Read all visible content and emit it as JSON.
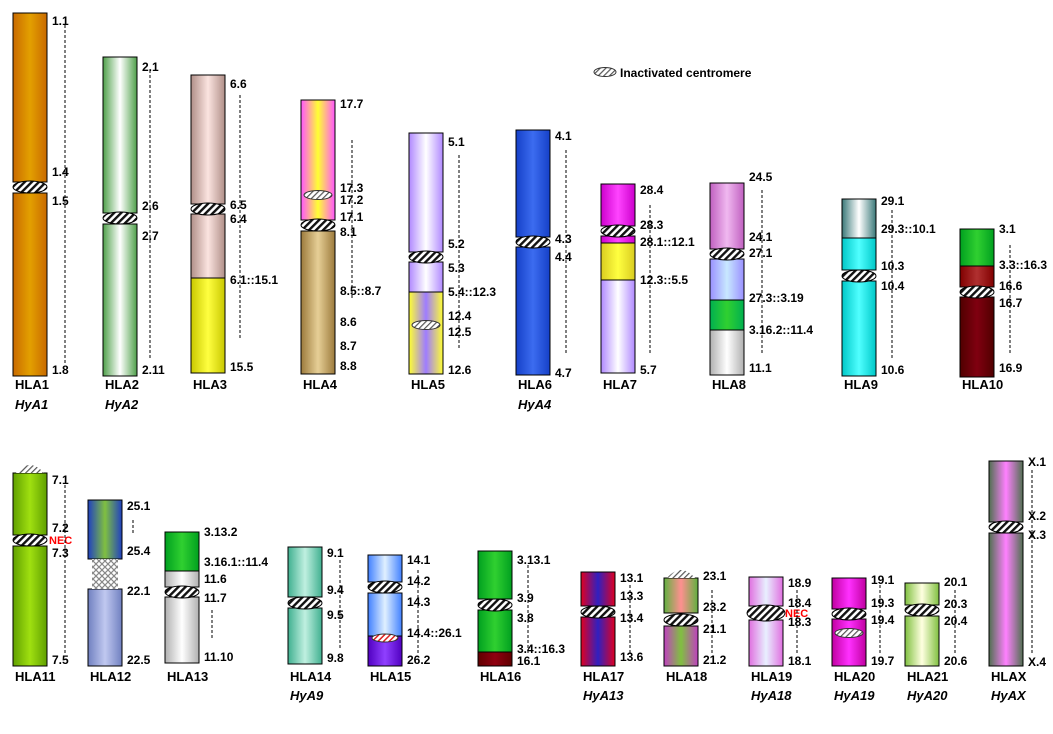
{
  "legend": {
    "label": "Inactivated centromere"
  },
  "nec_label": "NEC",
  "chromosomes": [
    {
      "name": "HLA1",
      "homolog": "HyA1",
      "segments": [
        [
          "#c96a00",
          "#e3a000"
        ],
        [
          "#c96a00",
          "#e3a000"
        ]
      ],
      "bands": [
        "1.1",
        "1.4",
        "1.5",
        "1.8"
      ]
    },
    {
      "name": "HLA2",
      "homolog": "HyA2",
      "segments": [
        [
          "#4fa04a",
          "#ffffff"
        ],
        [
          "#4fa04a",
          "#ffffff"
        ]
      ],
      "bands": [
        "2.1",
        "2.6",
        "2.7",
        "2.11"
      ]
    },
    {
      "name": "HLA3",
      "homolog": "",
      "segments": [
        [
          "#b08f88",
          "#fbe4e0"
        ],
        [
          "#b08f88",
          "#fbe4e0"
        ],
        [
          "#c9c800",
          "#ffff40"
        ]
      ],
      "bands": [
        "6.6",
        "6.5",
        "6.4",
        "6.1::15.1",
        "15.5"
      ]
    },
    {
      "name": "HLA4",
      "homolog": "",
      "segments": [
        [
          "#ff55ff",
          "#ffff33"
        ],
        [
          "#9c7a3c",
          "#e6cf96"
        ]
      ],
      "bands": [
        "17.7",
        "17.3",
        "17.2",
        "17.1",
        "8.1",
        "8.5::8.7",
        "8.6",
        "8.7",
        "8.8"
      ]
    },
    {
      "name": "HLA5",
      "homolog": "",
      "segments": [
        [
          "#b089ff",
          "#ffffff"
        ],
        [
          "#b089ff",
          "#ffffff"
        ],
        [
          "#ffff33",
          "#9e7cff"
        ]
      ],
      "bands": [
        "5.1",
        "5.2",
        "5.3",
        "5.4::12.3",
        "12.4",
        "12.5",
        "12.6"
      ]
    },
    {
      "name": "HLA6",
      "homolog": "HyA4",
      "segments": [
        [
          "#1540c8",
          "#3c6cf0"
        ],
        [
          "#1540c8",
          "#3c6cf0"
        ]
      ],
      "bands": [
        "4.1",
        "4.3",
        "4.4",
        "4.7"
      ]
    },
    {
      "name": "HLA7",
      "homolog": "",
      "segments": [
        [
          "#cc00cc",
          "#ff44ff"
        ],
        [
          "#cc00cc",
          "#ff44ff"
        ],
        [
          "#d9cc20",
          "#ffff40"
        ],
        [
          "#b089ff",
          "#ffffff"
        ]
      ],
      "bands": [
        "28.4",
        "28.3",
        "28.1::12.1",
        "12.3::5.5",
        "5.7"
      ]
    },
    {
      "name": "HLA8",
      "homolog": "",
      "segments": [
        [
          "#c060c0",
          "#f0b8f0"
        ],
        [
          "#9a90ff",
          "#c8e8ff"
        ],
        [
          "#00b050",
          "#30d030"
        ],
        [
          "#b0b0b0",
          "#ffffff"
        ]
      ],
      "bands": [
        "24.5",
        "24.1",
        "27.1",
        "27.3::3.19",
        "3.16.2::11.4",
        "11.1"
      ]
    },
    {
      "name": "HLA9",
      "homolog": "",
      "segments": [
        [
          "#3a7878",
          "#ffffff"
        ],
        [
          "#00c8c8",
          "#50ffff"
        ],
        [
          "#00c8c8",
          "#50ffff"
        ]
      ],
      "bands": [
        "29.1",
        "29.3::10.1",
        "10.3",
        "10.4",
        "10.6"
      ]
    },
    {
      "name": "HLA10",
      "homolog": "",
      "segments": [
        [
          "#00a020",
          "#30d030"
        ],
        [
          "#800000",
          "#b03030"
        ],
        [
          "#500000",
          "#800010"
        ]
      ],
      "bands": [
        "3.1",
        "3.3::16.3",
        "16.6",
        "16.7",
        "16.9"
      ]
    },
    {
      "name": "HLA11",
      "homolog": "",
      "segments": [
        [
          "#60a000",
          "#a0e010"
        ],
        [
          "#60a000",
          "#a0e010"
        ]
      ],
      "bands": [
        "7.1",
        "7.2",
        "7.3",
        "7.5"
      ]
    },
    {
      "name": "HLA12",
      "homolog": "",
      "segments": [
        [
          "#2040c0",
          "#80c040"
        ],
        [
          "#7080c0",
          "#c0c8f0"
        ]
      ],
      "bands": [
        "25.1",
        "25.4",
        "22.1",
        "22.5"
      ]
    },
    {
      "name": "HLA13",
      "homolog": "",
      "segments": [
        [
          "#00a020",
          "#30d030"
        ],
        [
          "#b0b0b0",
          "#ffffff"
        ],
        [
          "#b0b0b0",
          "#ffffff"
        ]
      ],
      "bands": [
        "3.13.2",
        "3.16.1::11.4",
        "11.6",
        "11.7",
        "11.10"
      ]
    },
    {
      "name": "HLA14",
      "homolog": "HyA9",
      "segments": [
        [
          "#40b090",
          "#c0f0e0"
        ],
        [
          "#40b090",
          "#c0f0e0"
        ]
      ],
      "bands": [
        "9.1",
        "9.4",
        "9.5",
        "9.8"
      ]
    },
    {
      "name": "HLA15",
      "homolog": "",
      "segments": [
        [
          "#4080ff",
          "#e0f0ff"
        ],
        [
          "#4080ff",
          "#e0f0ff"
        ],
        [
          "#5000c0",
          "#9040ff"
        ]
      ],
      "bands": [
        "14.1",
        "14.2",
        "14.3",
        "14.4::26.1",
        "26.2"
      ]
    },
    {
      "name": "HLA16",
      "homolog": "",
      "segments": [
        [
          "#00a020",
          "#30d030"
        ],
        [
          "#00a020",
          "#30d030"
        ],
        [
          "#600000",
          "#900010"
        ]
      ],
      "bands": [
        "3.13.1",
        "3.9",
        "3.8",
        "3.4::16.3",
        "16.1"
      ]
    },
    {
      "name": "HLA17",
      "homolog": "HyA13",
      "segments": [
        [
          "#e00020",
          "#3020c0"
        ],
        [
          "#e00020",
          "#3020c0"
        ]
      ],
      "bands": [
        "13.1",
        "13.3",
        "13.4",
        "13.6"
      ]
    },
    {
      "name": "HLA18",
      "homolog": "",
      "segments": [
        [
          "#60b040",
          "#ff9090"
        ],
        [
          "#c040c0",
          "#80c040"
        ]
      ],
      "bands": [
        "23.1",
        "23.2",
        "21.1",
        "21.2"
      ]
    },
    {
      "name": "HLA19",
      "homolog": "HyA18",
      "segments": [
        [
          "#e070e0",
          "#e8f0ff"
        ],
        [
          "#e070e0",
          "#e8f0ff"
        ]
      ],
      "bands": [
        "18.9",
        "18.4",
        "18.3",
        "18.1"
      ]
    },
    {
      "name": "HLA20",
      "homolog": "HyA19",
      "segments": [
        [
          "#c000a0",
          "#ff30ff"
        ],
        [
          "#c000a0",
          "#ff30ff"
        ]
      ],
      "bands": [
        "19.1",
        "19.3",
        "19.4",
        "19.7"
      ]
    },
    {
      "name": "HLA21",
      "homolog": "HyA20",
      "segments": [
        [
          "#80c040",
          "#ffffe0"
        ],
        [
          "#80c040",
          "#ffffe0"
        ]
      ],
      "bands": [
        "20.1",
        "20.3",
        "20.4",
        "20.6"
      ]
    },
    {
      "name": "HLAX",
      "homolog": "HyAX",
      "segments": [
        [
          "#507050",
          "#ff80ff"
        ],
        [
          "#507050",
          "#ff80ff"
        ]
      ],
      "bands": [
        "X.1",
        "X.2",
        "X.3",
        "X.4"
      ]
    }
  ]
}
